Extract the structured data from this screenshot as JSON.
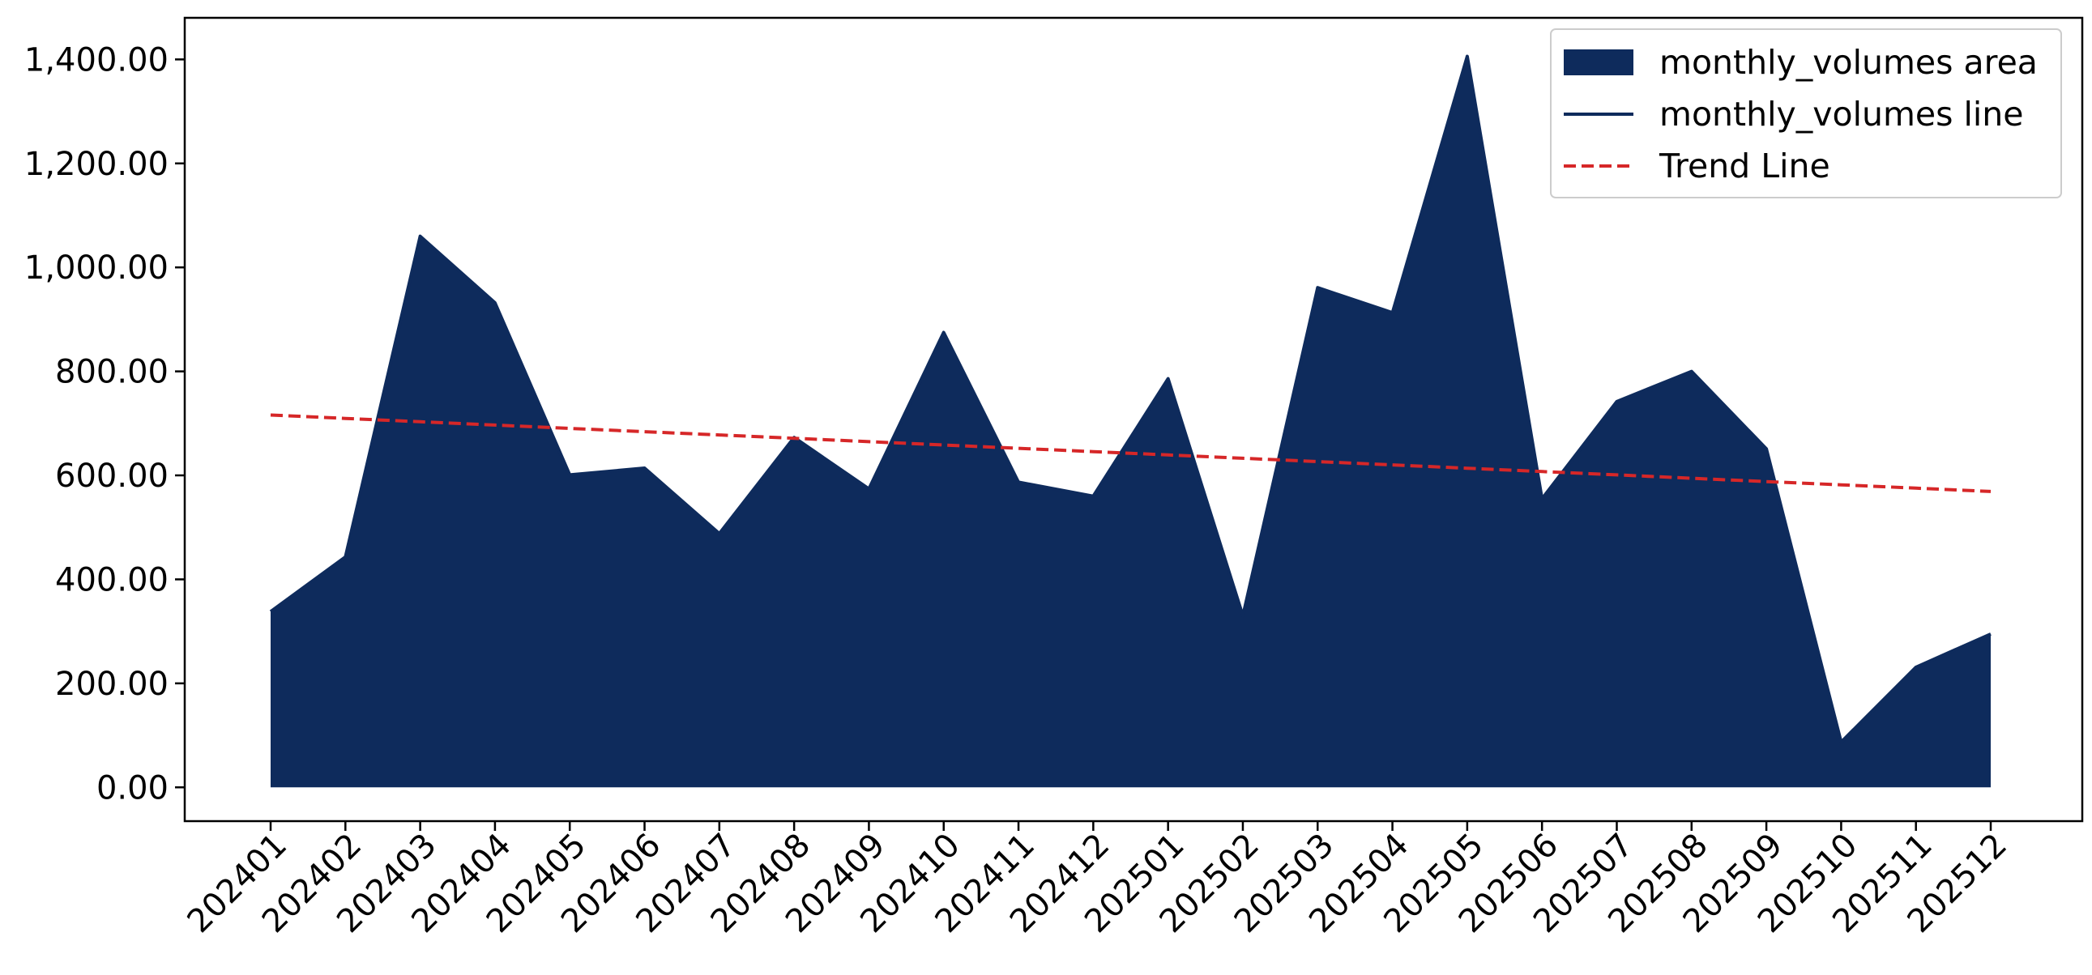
{
  "chart_data": {
    "type": "area",
    "title": "",
    "xlabel": "",
    "ylabel": "",
    "categories": [
      "202401",
      "202402",
      "202403",
      "202404",
      "202405",
      "202406",
      "202407",
      "202408",
      "202409",
      "202410",
      "202411",
      "202412",
      "202501",
      "202502",
      "202503",
      "202504",
      "202505",
      "202506",
      "202507",
      "202508",
      "202509",
      "202510",
      "202511",
      "202512"
    ],
    "series": [
      {
        "name": "monthly_volumes area",
        "kind": "area",
        "color": "#0e2b5c",
        "values": [
          338,
          443,
          1060,
          932,
          601,
          614,
          488,
          673,
          574,
          875,
          587,
          560,
          786,
          330,
          961,
          913,
          1406,
          555,
          742,
          800,
          651,
          87,
          231,
          295
        ]
      },
      {
        "name": "monthly_volumes line",
        "kind": "line",
        "color": "#0e2b5c",
        "values": [
          338,
          443,
          1060,
          932,
          601,
          614,
          488,
          673,
          574,
          875,
          587,
          560,
          786,
          330,
          961,
          913,
          1406,
          555,
          742,
          800,
          651,
          87,
          231,
          295
        ]
      },
      {
        "name": "Trend Line",
        "kind": "dashed-line",
        "color": "#d62728",
        "values": [
          716,
          709.6,
          703.2,
          696.8,
          690.4,
          684,
          677.7,
          671.3,
          664.9,
          658.5,
          652.1,
          645.7,
          639.3,
          632.9,
          626.5,
          620.1,
          613.7,
          607.3,
          600.9,
          594.5,
          588.1,
          581.8,
          575.4,
          569
        ]
      }
    ],
    "y_ticks": [
      "0.00",
      "200.00",
      "400.00",
      "600.00",
      "800.00",
      "1,000.00",
      "1,200.00",
      "1,400.00"
    ],
    "y_tick_values": [
      0,
      200,
      400,
      600,
      800,
      1000,
      1200,
      1400
    ],
    "ylim": [
      -65,
      1480
    ],
    "grid": false,
    "legend_position": "top-right"
  }
}
